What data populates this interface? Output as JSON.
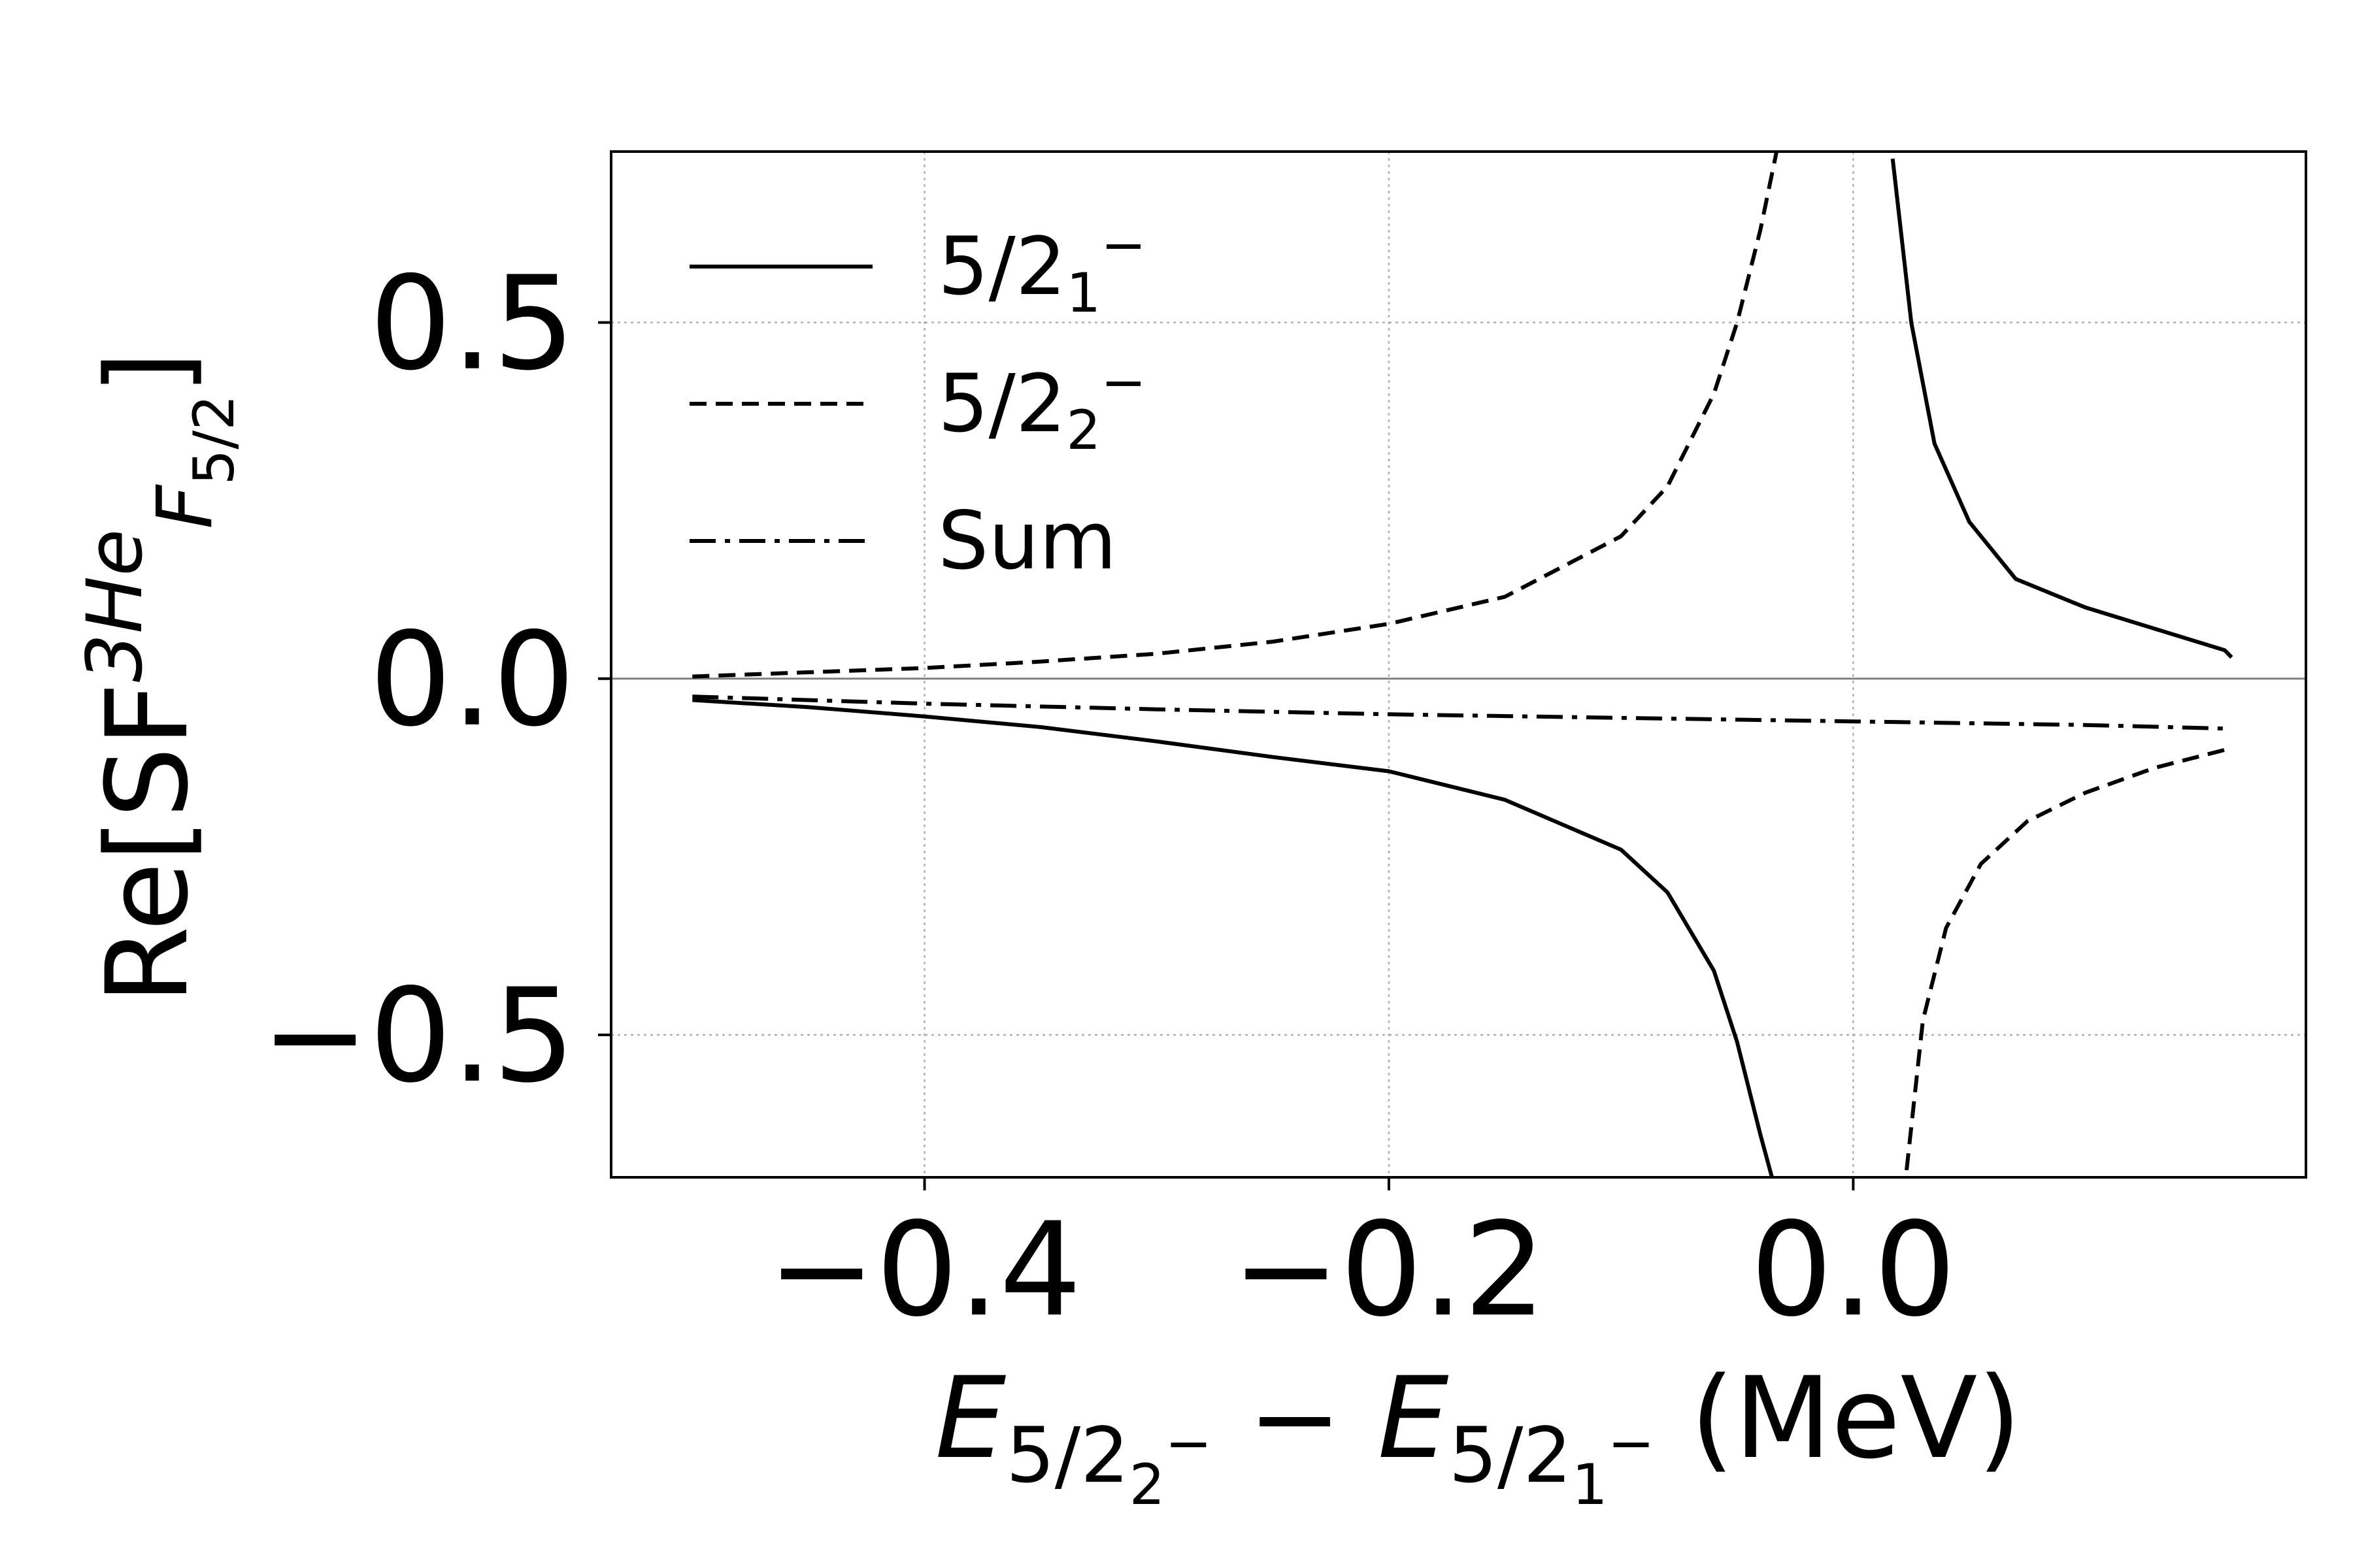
{
  "chart_data": {
    "type": "line",
    "title": "",
    "xlabel": {
      "parts": [
        {
          "text": "E",
          "style": "italic"
        },
        {
          "text": "5/2",
          "style": "sub"
        },
        {
          "text": "2",
          "style": "subsub"
        },
        {
          "text": "−",
          "style": "subsup"
        },
        {
          "text": " − ",
          "style": "normal"
        },
        {
          "text": "E",
          "style": "italic"
        },
        {
          "text": "5/2",
          "style": "sub"
        },
        {
          "text": "1",
          "style": "subsub"
        },
        {
          "text": "−",
          "style": "subsup"
        },
        {
          "text": " (MeV)",
          "style": "normal"
        }
      ]
    },
    "ylabel": {
      "parts": [
        {
          "text": "Re[SF",
          "style": "normal"
        },
        {
          "text": "3He",
          "style": "sup-italic"
        },
        {
          "text": "F",
          "style": "sub-italic"
        },
        {
          "text": "5/2",
          "style": "subsub"
        },
        {
          "text": "]",
          "style": "normal"
        }
      ]
    },
    "xlim": [
      -0.535,
      0.195
    ],
    "ylim": [
      -0.7,
      0.74
    ],
    "x_ticks": [
      -0.4,
      -0.2,
      0.0
    ],
    "x_tick_labels": [
      "−0.4",
      "−0.2",
      "0.0"
    ],
    "y_ticks": [
      -0.5,
      0.0,
      0.5
    ],
    "y_tick_labels": [
      "−0.5",
      "0.0",
      "0.5"
    ],
    "grid": true,
    "zero_line": true,
    "legend_position": "upper-left",
    "colors": {
      "line": "#000000",
      "grid": "#b0b0b0",
      "zero": "#808080"
    },
    "series": [
      {
        "name_parts": [
          {
            "text": "5/2",
            "style": "normal"
          },
          {
            "text": "1",
            "style": "sub"
          },
          {
            "text": "−",
            "style": "sup"
          }
        ],
        "dash": "solid",
        "segments": [
          {
            "x": [
              -0.5,
              -0.45,
              -0.4,
              -0.35,
              -0.3,
              -0.25,
              -0.2,
              -0.15,
              -0.1,
              -0.08,
              -0.06,
              -0.05,
              -0.04,
              -0.035
            ],
            "y": [
              -0.03,
              -0.04,
              -0.053,
              -0.068,
              -0.088,
              -0.11,
              -0.13,
              -0.17,
              -0.24,
              -0.3,
              -0.41,
              -0.51,
              -0.64,
              -0.7
            ]
          },
          {
            "x": [
              0.017,
              0.025,
              0.035,
              0.05,
              0.07,
              0.1,
              0.13,
              0.16,
              0.163
            ],
            "y": [
              0.73,
              0.5,
              0.33,
              0.22,
              0.14,
              0.1,
              0.07,
              0.04,
              0.03
            ]
          }
        ]
      },
      {
        "name_parts": [
          {
            "text": "5/2",
            "style": "normal"
          },
          {
            "text": "2",
            "style": "sub"
          },
          {
            "text": "−",
            "style": "sup"
          }
        ],
        "dash": "dashed",
        "segments": [
          {
            "x": [
              -0.5,
              -0.45,
              -0.4,
              -0.35,
              -0.3,
              -0.25,
              -0.2,
              -0.15,
              -0.1,
              -0.08,
              -0.06,
              -0.05,
              -0.04,
              -0.033
            ],
            "y": [
              0.003,
              0.009,
              0.015,
              0.024,
              0.035,
              0.052,
              0.077,
              0.115,
              0.2,
              0.27,
              0.4,
              0.5,
              0.63,
              0.74
            ]
          },
          {
            "x": [
              0.023,
              0.03,
              0.04,
              0.055,
              0.075,
              0.1,
              0.13,
              0.16
            ],
            "y": [
              -0.69,
              -0.48,
              -0.35,
              -0.26,
              -0.2,
              -0.16,
              -0.125,
              -0.1
            ]
          }
        ]
      },
      {
        "name_parts": [
          {
            "text": "Sum",
            "style": "normal"
          }
        ],
        "dash": "dashdot",
        "segments": [
          {
            "x": [
              -0.5,
              -0.4,
              -0.3,
              -0.2,
              -0.1,
              0.0,
              0.1,
              0.16
            ],
            "y": [
              -0.025,
              -0.035,
              -0.043,
              -0.05,
              -0.055,
              -0.06,
              -0.065,
              -0.07
            ]
          }
        ]
      }
    ]
  }
}
